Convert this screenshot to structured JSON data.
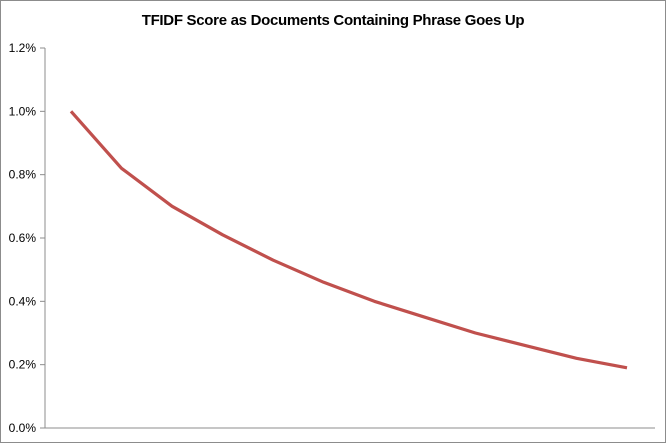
{
  "chart_data": {
    "type": "line",
    "title": "TFIDF Score as Documents Containing Phrase Goes Up",
    "xlabel": "",
    "ylabel": "",
    "ylim": [
      0,
      0.012
    ],
    "yticks": [
      0,
      0.002,
      0.004,
      0.006,
      0.008,
      0.01,
      0.012
    ],
    "ytick_labels": [
      "0.0%",
      "0.2%",
      "0.4%",
      "0.6%",
      "0.8%",
      "1.0%",
      "1.2%"
    ],
    "x": [
      1,
      2,
      3,
      4,
      5,
      6,
      7,
      8,
      9,
      10,
      11,
      12
    ],
    "series": [
      {
        "values": [
          0.01,
          0.0082,
          0.007,
          0.0061,
          0.0053,
          0.0046,
          0.004,
          0.0035,
          0.003,
          0.0026,
          0.0022,
          0.0019
        ]
      }
    ],
    "line_color": "#c0504d",
    "grid": false,
    "legend": "none"
  }
}
